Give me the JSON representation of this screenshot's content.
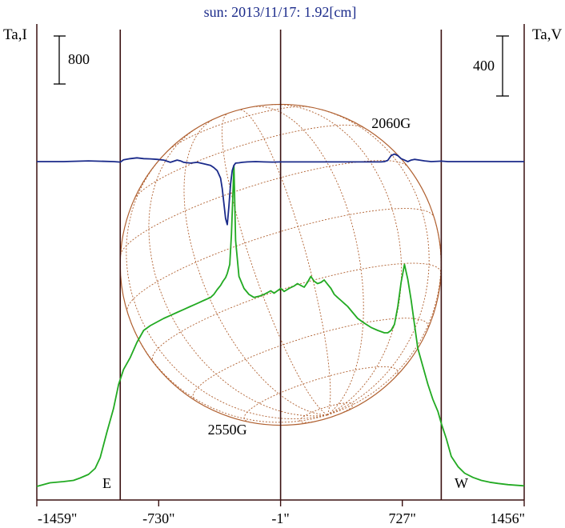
{
  "chart_data": {
    "type": "line",
    "title": "sun: 2013/11/17: 1.92[cm]",
    "ylabel_left": "Ta,I",
    "ylabel_right": "Ta,V",
    "scale_left": {
      "label": "800",
      "value": 800
    },
    "scale_right": {
      "label": "400",
      "value": 400
    },
    "xlim": [
      -1459,
      1456
    ],
    "x_ticks": [
      {
        "value": -1459,
        "label": "-1459\""
      },
      {
        "value": -730,
        "label": "-730\""
      },
      {
        "value": -1,
        "label": "-1\""
      },
      {
        "value": 727,
        "label": "727\""
      },
      {
        "value": 1456,
        "label": "1456\""
      }
    ],
    "vertical_lines": [
      -960,
      -1,
      960
    ],
    "limb_labels": [
      {
        "text": "E",
        "x": -1040
      },
      {
        "text": "W",
        "x": 1080
      }
    ],
    "annotations": [
      {
        "text": "2550G",
        "x": -300
      },
      {
        "text": "2060G",
        "x": 660
      }
    ],
    "solar_disk_radius": 960,
    "grid_on": true,
    "colors": {
      "intensity": "#22aa22",
      "polarization": "#1a2a8a",
      "disk": "#b06030",
      "axis": "#3a1010"
    },
    "series": [
      {
        "name": "Ta,I",
        "color": "#22aa22",
        "x": [
          -1459,
          -1380,
          -1300,
          -1240,
          -1200,
          -1150,
          -1110,
          -1080,
          -1040,
          -1000,
          -970,
          -940,
          -900,
          -860,
          -820,
          -780,
          -740,
          -700,
          -660,
          -620,
          -580,
          -540,
          -500,
          -460,
          -420,
          -400,
          -380,
          -360,
          -345,
          -330,
          -320,
          -305,
          -295,
          -280,
          -270,
          -250,
          -220,
          -190,
          -160,
          -130,
          -100,
          -80,
          -60,
          -40,
          -20,
          0,
          20,
          50,
          80,
          100,
          120,
          140,
          160,
          180,
          200,
          220,
          240,
          260,
          280,
          300,
          320,
          340,
          360,
          380,
          400,
          430,
          460,
          500,
          540,
          580,
          620,
          640,
          660,
          680,
          700,
          720,
          740,
          760,
          780,
          800,
          820,
          850,
          880,
          910,
          940,
          960,
          990,
          1020,
          1060,
          1100,
          1150,
          1200,
          1250,
          1300,
          1360,
          1456
        ],
        "y": [
          0,
          60,
          80,
          100,
          140,
          200,
          300,
          480,
          900,
          1300,
          1700,
          1950,
          2150,
          2400,
          2600,
          2680,
          2740,
          2800,
          2850,
          2900,
          2950,
          3000,
          3050,
          3100,
          3150,
          3200,
          3280,
          3350,
          3420,
          3480,
          3550,
          3700,
          4200,
          5350,
          4100,
          3500,
          3300,
          3200,
          3150,
          3170,
          3200,
          3230,
          3260,
          3220,
          3260,
          3300,
          3250,
          3300,
          3340,
          3380,
          3350,
          3320,
          3400,
          3500,
          3420,
          3380,
          3400,
          3440,
          3370,
          3300,
          3200,
          3150,
          3100,
          3050,
          3000,
          2900,
          2800,
          2720,
          2650,
          2600,
          2560,
          2560,
          2600,
          2700,
          3000,
          3400,
          3700,
          3450,
          3100,
          2700,
          2300,
          2000,
          1700,
          1450,
          1250,
          1050,
          800,
          500,
          330,
          220,
          150,
          100,
          70,
          50,
          30,
          10
        ]
      },
      {
        "name": "Ta,V",
        "color": "#1a2a8a",
        "x": [
          -1459,
          -1300,
          -1150,
          -1000,
          -960,
          -940,
          -900,
          -860,
          -820,
          -780,
          -740,
          -700,
          -660,
          -620,
          -600,
          -580,
          -540,
          -500,
          -460,
          -420,
          -400,
          -380,
          -360,
          -350,
          -340,
          -330,
          -320,
          -310,
          -300,
          -290,
          -280,
          -270,
          -250,
          -230,
          -200,
          -150,
          -100,
          -50,
          0,
          50,
          100,
          150,
          200,
          250,
          300,
          350,
          400,
          450,
          500,
          550,
          600,
          620,
          640,
          660,
          680,
          700,
          720,
          740,
          760,
          780,
          800,
          830,
          860,
          900,
          940,
          960,
          1000,
          1100,
          1200,
          1300,
          1456
        ],
        "y": [
          0,
          0,
          5,
          0,
          -3,
          12,
          20,
          25,
          20,
          18,
          15,
          10,
          -5,
          10,
          5,
          -5,
          -10,
          -5,
          -15,
          -25,
          -40,
          -60,
          -110,
          -180,
          -280,
          -380,
          -420,
          -300,
          -150,
          -60,
          -25,
          -10,
          -8,
          -5,
          -2,
          0,
          -2,
          -3,
          -2,
          -2,
          -2,
          -2,
          -2,
          -2,
          -2,
          -2,
          -2,
          -2,
          -2,
          -2,
          -2,
          0,
          8,
          40,
          50,
          40,
          20,
          10,
          0,
          10,
          15,
          10,
          5,
          0,
          2,
          3,
          0,
          0,
          0,
          0,
          0
        ]
      }
    ]
  }
}
